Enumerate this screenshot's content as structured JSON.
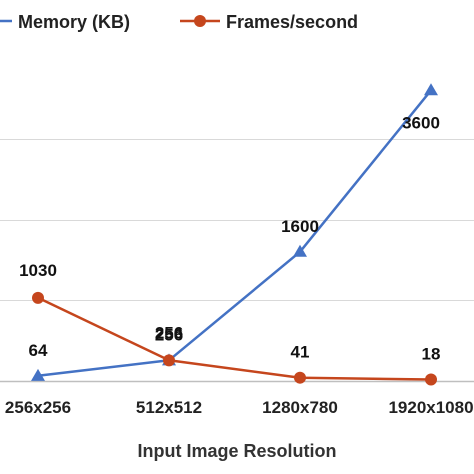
{
  "chart_data": {
    "type": "line",
    "xlabel": "Input Image Resolution",
    "categories": [
      "256x256",
      "512x512",
      "1280x780",
      "1920x1080"
    ],
    "legend_position": "top",
    "grid": true,
    "series": [
      {
        "name": "Memory (KB)",
        "color": "#4472C4",
        "marker": "triangle",
        "values": [
          64,
          256,
          1600,
          3600
        ],
        "labels": [
          "64",
          "256",
          "1600",
          "3600"
        ]
      },
      {
        "name": "Frames/second",
        "color": "#C5461D",
        "marker": "circle",
        "values": [
          1030,
          256,
          41,
          18
        ],
        "labels": [
          "1030",
          "256",
          "41",
          "18"
        ]
      }
    ],
    "ylim": [
      0,
      4000
    ]
  }
}
